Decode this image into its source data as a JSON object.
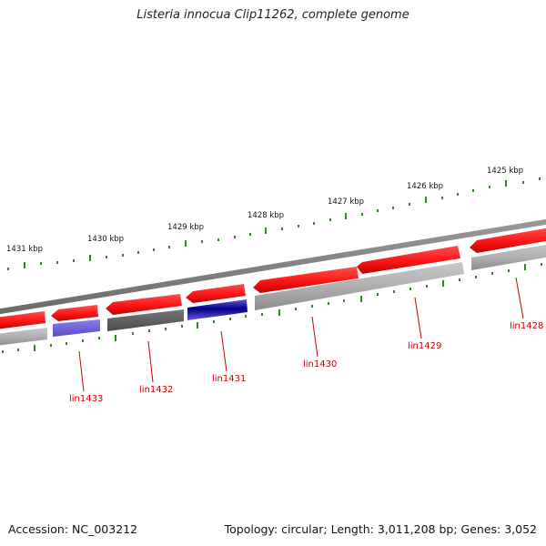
{
  "title": "Listeria innocua Clip11262, complete genome",
  "footer": {
    "accession": "Accession: NC_003212",
    "summary": "Topology: circular; Length: 3,011,208 bp; Genes: 3,052"
  },
  "colors": {
    "tick": "#2e8b1e",
    "backbone": "#7f7f7f",
    "gene_label": "#cc0000",
    "feature_red": "#ff1a1a",
    "feature_gray": "#a9a9a9",
    "feature_darkgray": "#5a5a5a",
    "feature_blue": "#6a5acd",
    "feature_navy": "#00008b"
  },
  "scale": {
    "labels": [
      "1431 kbp",
      "1430 kbp",
      "1429 kbp",
      "1428 kbp",
      "1427 kbp",
      "1426 kbp",
      "1425 kbp"
    ]
  },
  "genes": [
    {
      "label": "lin1433"
    },
    {
      "label": "lin1432"
    },
    {
      "label": "lin1431"
    },
    {
      "label": "lin1430"
    },
    {
      "label": "lin1429"
    },
    {
      "label": "lin1428"
    }
  ]
}
